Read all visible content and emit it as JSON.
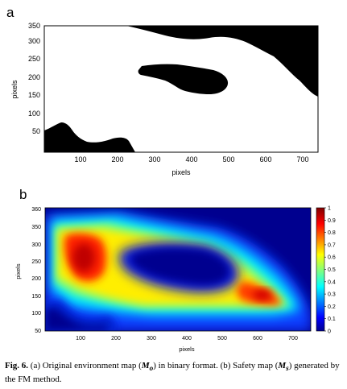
{
  "panels": {
    "a": {
      "label": "a",
      "xlabel": "pixels",
      "ylabel": "pixels",
      "xticks": [
        100,
        200,
        300,
        400,
        500,
        600,
        700
      ],
      "yticks": [
        50,
        100,
        150,
        200,
        250,
        300,
        350
      ]
    },
    "b": {
      "label": "b",
      "xlabel": "pixels",
      "ylabel": "pixels",
      "xticks": [
        100,
        200,
        300,
        400,
        500,
        600,
        700
      ],
      "yticks": [
        50,
        100,
        150,
        200,
        250,
        300,
        350
      ],
      "colorbar_ticks": [
        0,
        0.1,
        0.2,
        0.3,
        0.4,
        0.5,
        0.6,
        0.7,
        0.8,
        0.9,
        1
      ]
    }
  },
  "chart_data": [
    {
      "type": "heatmap",
      "panel": "a",
      "xlabel": "pixels",
      "ylabel": "pixels",
      "xlim": [
        0,
        750
      ],
      "ylim": [
        0,
        350
      ],
      "colors": {
        "obstacle": "#000000",
        "free": "#ffffff"
      }
    },
    {
      "type": "heatmap",
      "panel": "b",
      "xlabel": "pixels",
      "ylabel": "pixels",
      "xlim": [
        0,
        750
      ],
      "ylim": [
        0,
        360
      ],
      "colorbar_range": [
        0,
        1
      ],
      "colormap": "jet"
    }
  ],
  "caption": {
    "fig": "Fig. 6.",
    "t1": " (a) Original environment map (",
    "m1": "M",
    "s1": "o",
    "t2": ") in binary format. (b) Safety map (",
    "m2": "M",
    "s2": "s",
    "t3": ") generated by the FM method."
  }
}
